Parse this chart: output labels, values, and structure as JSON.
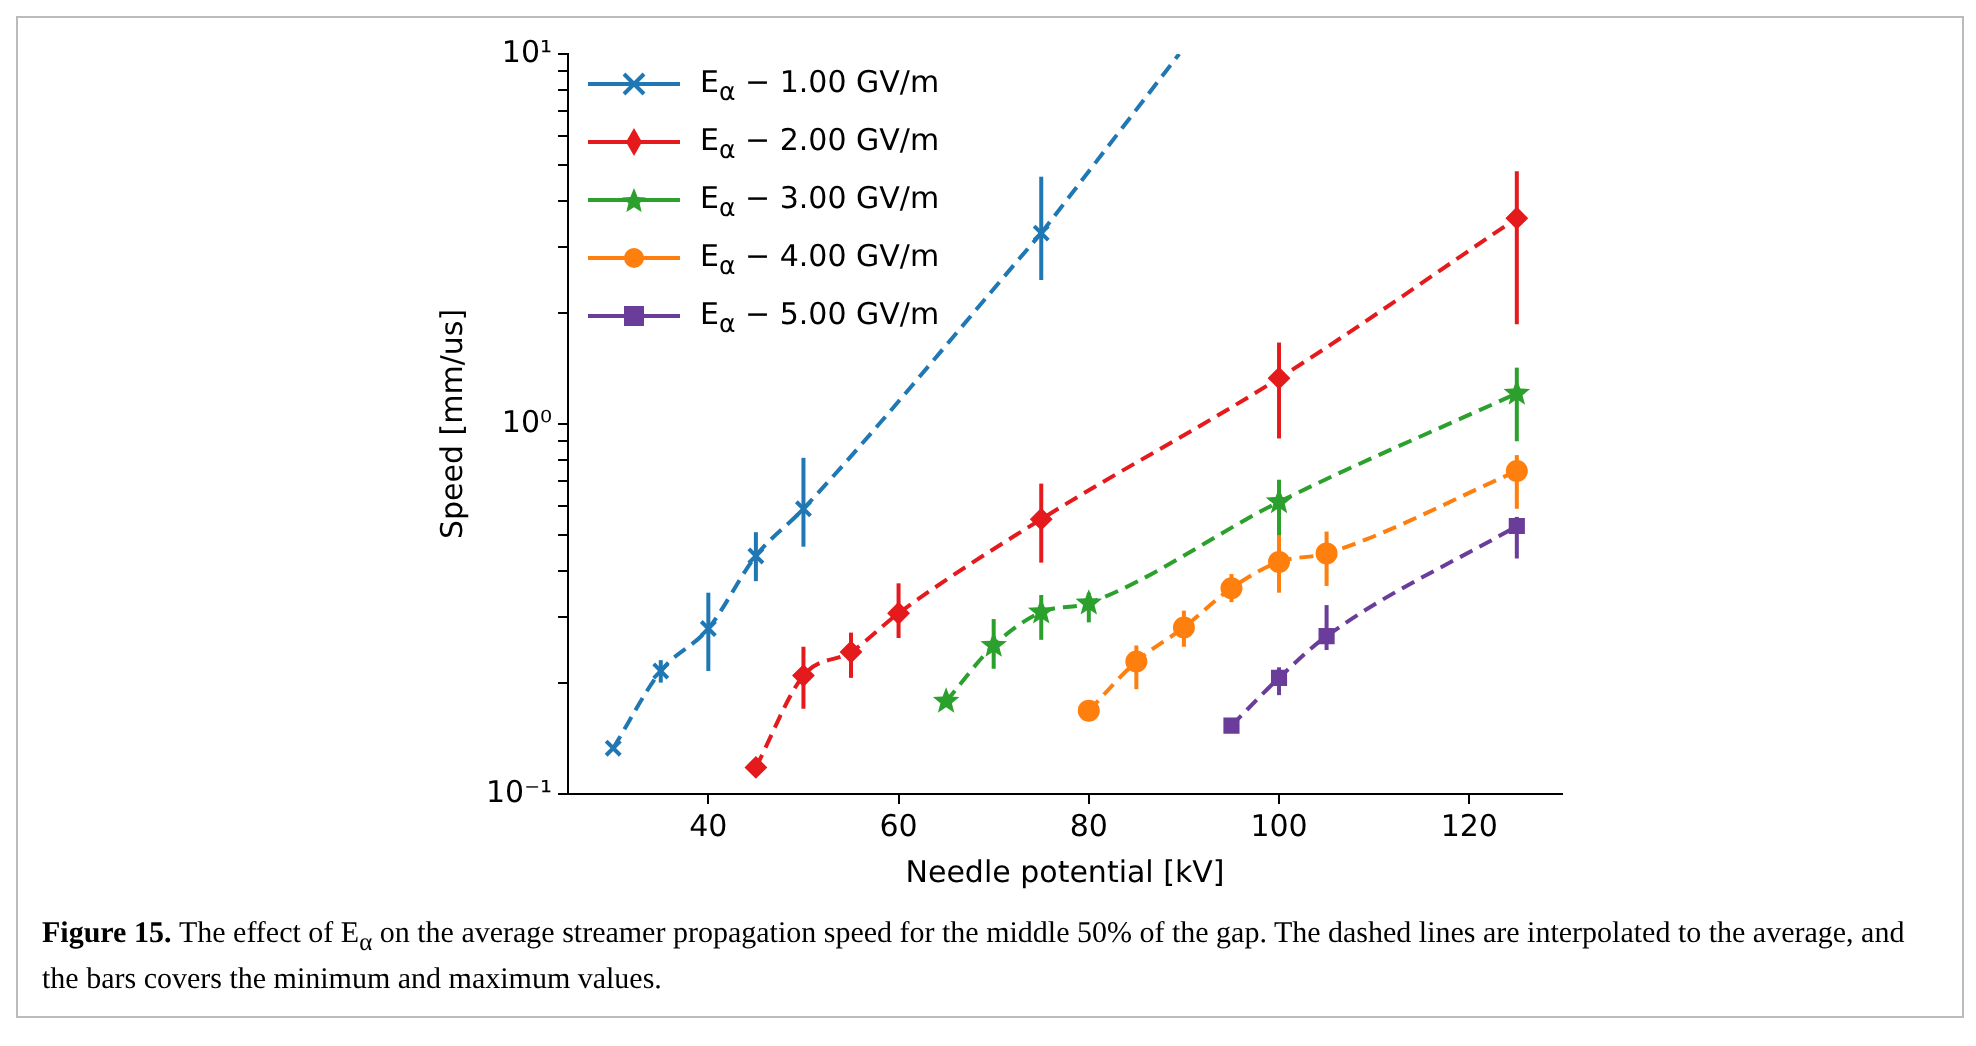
{
  "chart_data": {
    "type": "line",
    "xlabel": "Needle potential [kV]",
    "ylabel": "Speed [mm/us]",
    "annotations": [
      "Figure 15.",
      "The effect of E$_{α}$ on the average streamer propagation speed for the middle 50% of the gap. The dashed lines are interpolated to the average, and the bars covers the minimum and maximum values."
    ],
    "log": "y",
    "grid": false,
    "legend": "top left",
    "line_style": "dashed",
    "xlim": [
      25.25,
      129.75
    ],
    "xticks": [
      40,
      60,
      80,
      100,
      120
    ],
    "ylim": [
      0.1,
      10
    ],
    "yticks": [
      {
        "value": 0.1,
        "label": "10⁻¹"
      },
      {
        "value": 0.2,
        "label": null
      },
      {
        "value": 0.3,
        "label": null
      },
      {
        "value": 0.4,
        "label": null
      },
      {
        "value": 0.5,
        "label": null
      },
      {
        "value": 0.6,
        "label": null
      },
      {
        "value": 0.7,
        "label": null
      },
      {
        "value": 0.8,
        "label": null
      },
      {
        "value": 0.9,
        "label": null
      },
      {
        "value": 1,
        "label": "10⁰"
      },
      {
        "value": 2,
        "label": null
      },
      {
        "value": 3,
        "label": null
      },
      {
        "value": 4,
        "label": null
      },
      {
        "value": 5,
        "label": null
      },
      {
        "value": 6,
        "label": null
      },
      {
        "value": 7,
        "label": null
      },
      {
        "value": 8,
        "label": null
      },
      {
        "value": 9,
        "label": null
      },
      {
        "value": 10,
        "label": "10¹"
      }
    ],
    "series": [
      {
        "name": "E$_{α}$ − 1.00 GV/m",
        "color": "#1f77b4",
        "marker": "cross",
        "x": [
          30,
          35,
          40,
          45,
          50,
          75
        ],
        "values": [
          0.133,
          0.215,
          0.28,
          0.44,
          0.59,
          3.28
        ],
        "errors": [
          null,
          [
            0.2,
            0.23
          ],
          [
            0.215,
            0.35
          ],
          [
            0.376,
            0.51
          ],
          [
            0.466,
            0.81
          ],
          [
            2.45,
            4.66
          ]
        ]
      },
      {
        "name": "E$_{α}$ − 2.00 GV/m",
        "color": "#e41a1c",
        "marker": "diamond",
        "x": [
          45,
          50,
          55,
          60,
          75,
          100,
          125
        ],
        "values": [
          0.118,
          0.209,
          0.242,
          0.308,
          0.553,
          1.33,
          3.6
        ],
        "errors": [
          null,
          [
            0.17,
            0.25
          ],
          [
            0.206,
            0.273
          ],
          [
            0.264,
            0.371
          ],
          [
            0.422,
            0.69
          ],
          [
            0.914,
            1.66
          ],
          [
            1.86,
            4.82
          ]
        ]
      },
      {
        "name": "E$_{α}$ − 3.00 GV/m",
        "color": "#2ca02c",
        "marker": "star",
        "x": [
          65,
          70,
          75,
          80,
          100,
          125
        ],
        "values": [
          0.178,
          0.252,
          0.31,
          0.328,
          0.616,
          1.21
        ],
        "errors": [
          null,
          [
            0.218,
            0.297
          ],
          [
            0.261,
            0.345
          ],
          [
            0.291,
            0.35
          ],
          [
            0.497,
            0.707
          ],
          [
            0.898,
            1.42
          ]
        ]
      },
      {
        "name": "E$_{α}$ − 4.00 GV/m",
        "color": "#ff7f0e",
        "marker": "circle",
        "x": [
          80,
          85,
          90,
          95,
          100,
          105,
          125
        ],
        "values": [
          0.168,
          0.228,
          0.282,
          0.36,
          0.424,
          0.447,
          0.746
        ],
        "errors": [
          null,
          [
            0.192,
            0.252
          ],
          [
            0.25,
            0.313
          ],
          [
            0.33,
            0.393
          ],
          [
            0.35,
            0.501
          ],
          [
            0.365,
            0.512
          ],
          [
            0.59,
            0.824
          ]
        ]
      },
      {
        "name": "E$_{α}$ − 5.00 GV/m",
        "color": "#6a3d9a",
        "marker": "square",
        "x": [
          95,
          100,
          105,
          125
        ],
        "values": [
          0.153,
          0.206,
          0.267,
          0.53
        ],
        "errors": [
          null,
          [
            0.185,
            0.22
          ],
          [
            0.245,
            0.324
          ],
          [
            0.433,
            0.561
          ]
        ]
      },
      {
        "color": "#1f77b4",
        "marker": "none",
        "x": [
          75,
          89.5
        ],
        "values": [
          3.28,
          10
        ]
      }
    ]
  }
}
